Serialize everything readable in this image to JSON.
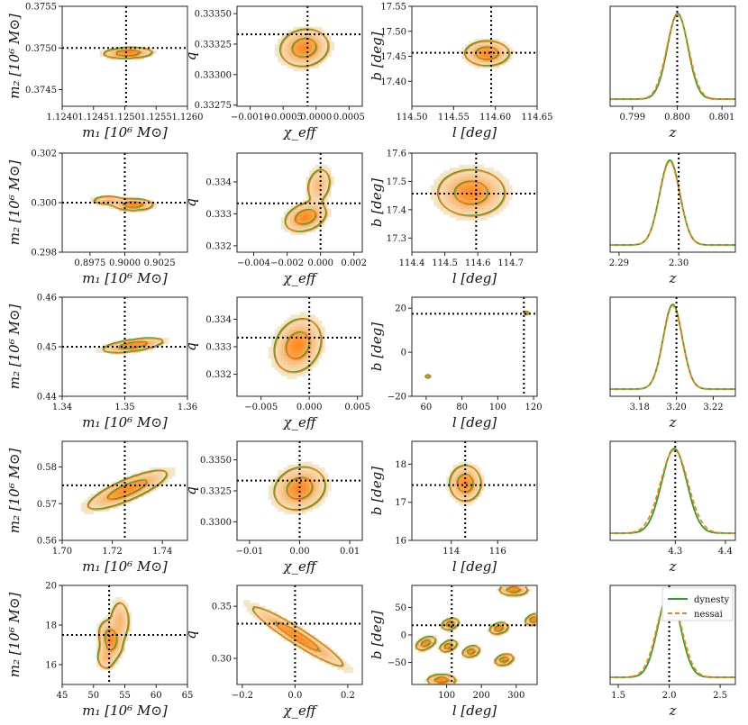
{
  "colors": {
    "dynesty": "#2ca02c",
    "nessai": "#ff7f0e",
    "injection": "#000000",
    "density_hi": "#ff8a1e",
    "density_lo": "#f3efd9"
  },
  "legend": {
    "items": [
      {
        "label": "dynesty",
        "style": "solid"
      },
      {
        "label": "nessai",
        "style": "dashed"
      }
    ],
    "location": "upper-right of last z panel"
  },
  "chart_data": [
    {
      "type": "contour",
      "row": 0,
      "col": 0,
      "xlabel": "m₁ [10⁶ M⊙]",
      "ylabel": "m₂ [10⁶ M⊙]",
      "xlim": [
        1.124,
        1.126
      ],
      "ylim": [
        0.3743,
        0.3755
      ],
      "xticks": [
        1.124,
        1.1245,
        1.125,
        1.1255,
        1.126
      ],
      "xticklabels": [
        "1.1240",
        "1.1245",
        "1.1250",
        "1.1255",
        "1.1260"
      ],
      "yticks": [
        0.3745,
        0.375,
        0.3755
      ],
      "yticklabels": [
        "0.3745",
        "0.3750",
        "0.3755"
      ],
      "injection": [
        1.12502,
        0.375
      ],
      "blobs": [
        {
          "center": [
            1.12505,
            0.37494
          ],
          "sx": 0.00019,
          "sy": 3e-05,
          "rho": 0.15
        }
      ]
    },
    {
      "type": "contour",
      "row": 0,
      "col": 1,
      "xlabel": "χ_eff",
      "ylabel": "q",
      "xlim": [
        -0.0012,
        0.0007
      ],
      "ylim": [
        0.33274,
        0.33356
      ],
      "xticks": [
        -0.001,
        -0.0005,
        0.0,
        0.0005
      ],
      "xticklabels": [
        "−0.0010",
        "−0.0005",
        "0.0000",
        "0.0005"
      ],
      "yticks": [
        0.33275,
        0.333,
        0.33325,
        0.3335
      ],
      "yticklabels": [
        "0.33275",
        "0.33300",
        "0.33325",
        "0.33350"
      ],
      "injection": [
        -0.00013,
        0.33333
      ],
      "blobs": [
        {
          "center": [
            -0.00018,
            0.33322
          ],
          "sx": 0.00018,
          "sy": 7.5e-05,
          "rho": 0.1
        }
      ]
    },
    {
      "type": "contour",
      "row": 0,
      "col": 2,
      "xlabel": "l [deg]",
      "ylabel": "b [deg]",
      "xlim": [
        114.5,
        114.65
      ],
      "ylim": [
        17.35,
        17.55
      ],
      "xticks": [
        114.5,
        114.55,
        114.6,
        114.65
      ],
      "xticklabels": [
        "114.50",
        "114.55",
        "114.60",
        "114.65"
      ],
      "yticks": [
        17.4,
        17.45,
        17.5,
        17.55
      ],
      "yticklabels": [
        "17.40",
        "17.45",
        "17.50",
        "17.55"
      ],
      "injection": [
        114.595,
        17.457
      ],
      "blobs": [
        {
          "center": [
            114.59,
            17.456
          ],
          "sx": 0.013,
          "sy": 0.012,
          "rho": 0.0
        }
      ]
    },
    {
      "type": "line",
      "row": 0,
      "col": 3,
      "xlabel": "z",
      "xlim": [
        0.7985,
        0.8013
      ],
      "xticks": [
        0.799,
        0.8,
        0.801
      ],
      "xticklabels": [
        "0.799",
        "0.800",
        "0.801"
      ],
      "injection": 0.8,
      "peak": 0.80001,
      "sigma": 0.00023,
      "nessai_sigma_scale": 1.06
    },
    {
      "type": "contour",
      "row": 1,
      "col": 0,
      "xlabel": "m₁ [10⁶ M⊙]",
      "ylabel": "m₂ [10⁶ M⊙]",
      "xlim": [
        0.8955,
        0.9045
      ],
      "ylim": [
        0.298,
        0.302
      ],
      "xticks": [
        0.8975,
        0.9,
        0.9025
      ],
      "xticklabels": [
        "0.8975",
        "0.9000",
        "0.9025"
      ],
      "yticks": [
        0.298,
        0.3,
        0.302
      ],
      "yticklabels": [
        "0.298",
        "0.300",
        "0.302"
      ],
      "injection": [
        0.9,
        0.3
      ],
      "blobs": [
        {
          "center": [
            0.9006,
            0.29992
          ],
          "sx": 0.0007,
          "sy": 0.00011,
          "rho": 0.0
        },
        {
          "center": [
            0.8988,
            0.30009
          ],
          "sx": 0.0006,
          "sy": 8e-05,
          "rho": 0.0,
          "w": 0.6
        }
      ]
    },
    {
      "type": "contour",
      "row": 1,
      "col": 1,
      "xlabel": "χ_eff",
      "ylabel": "q",
      "xlim": [
        -0.005,
        0.0025
      ],
      "ylim": [
        0.3318,
        0.3349
      ],
      "xticks": [
        -0.004,
        -0.002,
        0.0,
        0.002
      ],
      "xticklabels": [
        "−0.004",
        "−0.002",
        "0.000",
        "0.002"
      ],
      "yticks": [
        0.332,
        0.333,
        0.334
      ],
      "yticklabels": [
        "0.332",
        "0.333",
        "0.334"
      ],
      "injection": [
        0.0,
        0.33333
      ],
      "blobs": [
        {
          "center": [
            -0.0009,
            0.3329
          ],
          "sx": 0.0006,
          "sy": 0.00022,
          "rho": 0.3
        },
        {
          "center": [
            -0.0001,
            0.3339
          ],
          "sx": 0.0004,
          "sy": 0.0003,
          "rho": 0.2,
          "w": 0.45
        }
      ]
    },
    {
      "type": "contour",
      "row": 1,
      "col": 2,
      "xlabel": "l [deg]",
      "ylabel": "b [deg]",
      "xlim": [
        114.4,
        114.78
      ],
      "ylim": [
        17.25,
        17.6
      ],
      "xticks": [
        114.4,
        114.5,
        114.6,
        114.7
      ],
      "xticklabels": [
        "114.4",
        "114.5",
        "114.6",
        "114.7"
      ],
      "yticks": [
        17.3,
        17.4,
        17.5,
        17.6
      ],
      "yticklabels": [
        "17.3",
        "17.4",
        "17.5",
        "17.6"
      ],
      "injection": [
        114.595,
        17.457
      ],
      "blobs": [
        {
          "center": [
            114.58,
            17.46
          ],
          "sx": 0.05,
          "sy": 0.04,
          "rho": 0.0
        }
      ]
    },
    {
      "type": "line",
      "row": 1,
      "col": 3,
      "xlabel": "z",
      "xlim": [
        2.2885,
        2.3095
      ],
      "xticks": [
        2.29,
        2.3
      ],
      "xticklabels": [
        "2.29",
        "2.30"
      ],
      "injection": 2.3,
      "peak": 2.2985,
      "sigma": 0.0017,
      "nessai_sigma_scale": 1.0
    },
    {
      "type": "contour",
      "row": 2,
      "col": 0,
      "xlabel": "m₁ [10⁶ M⊙]",
      "ylabel": "m₂ [10⁶ M⊙]",
      "xlim": [
        1.34,
        1.36
      ],
      "ylim": [
        0.44,
        0.46
      ],
      "xticks": [
        1.34,
        1.35,
        1.36
      ],
      "xticklabels": [
        "1.34",
        "1.35",
        "1.36"
      ],
      "yticks": [
        0.44,
        0.45,
        0.46
      ],
      "yticklabels": [
        "0.44",
        "0.45",
        "0.46"
      ],
      "injection": [
        1.35,
        0.45
      ],
      "blobs": [
        {
          "center": [
            1.3513,
            0.4503
          ],
          "sx": 0.0024,
          "sy": 0.0007,
          "rho": 0.6
        }
      ]
    },
    {
      "type": "contour",
      "row": 2,
      "col": 1,
      "xlabel": "χ_eff",
      "ylabel": "q",
      "xlim": [
        -0.0075,
        0.0055
      ],
      "ylim": [
        0.3312,
        0.3348
      ],
      "xticks": [
        -0.005,
        0.0,
        0.005
      ],
      "xticklabels": [
        "−0.005",
        "0.000",
        "0.005"
      ],
      "yticks": [
        0.332,
        0.333,
        0.334
      ],
      "yticklabels": [
        "0.332",
        "0.333",
        "0.334"
      ],
      "injection": [
        0.0,
        0.33333
      ],
      "blobs": [
        {
          "center": [
            -0.0012,
            0.33305
          ],
          "sx": 0.0012,
          "sy": 0.00048,
          "rho": 0.2
        }
      ]
    },
    {
      "type": "scatter",
      "row": 2,
      "col": 2,
      "xlabel": "l [deg]",
      "ylabel": "b [deg]",
      "xlim": [
        52,
        122
      ],
      "ylim": [
        -20,
        25
      ],
      "xticks": [
        60,
        80,
        100,
        120
      ],
      "xticklabels": [
        "60",
        "80",
        "100",
        "120"
      ],
      "yticks": [
        -20,
        0,
        20
      ],
      "yticklabels": [
        "−20",
        "0",
        "20"
      ],
      "injection": [
        114.6,
        17.5
      ],
      "points": [
        [
          116.0,
          17.8
        ],
        [
          61.0,
          -11.0
        ]
      ]
    },
    {
      "type": "line",
      "row": 2,
      "col": 3,
      "xlabel": "z",
      "xlim": [
        3.164,
        3.232
      ],
      "xticks": [
        3.18,
        3.2,
        3.22
      ],
      "xticklabels": [
        "3.18",
        "3.20",
        "3.22"
      ],
      "injection": 3.2,
      "peak": 3.198,
      "sigma": 0.0052,
      "nessai_sigma_scale": 1.0
    },
    {
      "type": "contour",
      "row": 3,
      "col": 0,
      "xlabel": "m₁ [10⁶ M⊙]",
      "ylabel": "m₂ [10⁶ M⊙]",
      "xlim": [
        1.7,
        1.75
      ],
      "ylim": [
        0.56,
        0.587
      ],
      "xticks": [
        1.7,
        1.72,
        1.74
      ],
      "xticklabels": [
        "1.70",
        "1.72",
        "1.74"
      ],
      "yticks": [
        0.56,
        0.57,
        0.58
      ],
      "yticklabels": [
        "0.56",
        "0.57",
        "0.58"
      ],
      "injection": [
        1.725,
        0.575
      ],
      "blobs": [
        {
          "center": [
            1.726,
            0.5738
          ],
          "sx": 0.0078,
          "sy": 0.0026,
          "rho": 0.82
        }
      ]
    },
    {
      "type": "contour",
      "row": 3,
      "col": 1,
      "xlabel": "χ_eff",
      "ylabel": "q",
      "xlim": [
        -0.0125,
        0.0125
      ],
      "ylim": [
        0.3285,
        0.3365
      ],
      "xticks": [
        -0.01,
        0.0,
        0.01
      ],
      "xticklabels": [
        "−0.01",
        "0.00",
        "0.01"
      ],
      "yticks": [
        0.33,
        0.3325,
        0.335
      ],
      "yticklabels": [
        "0.3300",
        "0.3325",
        "0.3350"
      ],
      "injection": [
        0.0,
        0.33333
      ],
      "blobs": [
        {
          "center": [
            0.0,
            0.3327
          ],
          "sx": 0.0025,
          "sy": 0.00085,
          "rho": 0.15
        }
      ]
    },
    {
      "type": "contour",
      "row": 3,
      "col": 2,
      "xlabel": "l [deg]",
      "ylabel": "b [deg]",
      "xlim": [
        112.3,
        117.7
      ],
      "ylim": [
        16.0,
        18.6
      ],
      "xticks": [
        114,
        116
      ],
      "xticklabels": [
        "114",
        "116"
      ],
      "yticks": [
        16,
        17,
        18
      ],
      "yticklabels": [
        "16",
        "17",
        "18"
      ],
      "injection": [
        114.6,
        17.45
      ],
      "blobs": [
        {
          "center": [
            114.6,
            17.5
          ],
          "sx": 0.33,
          "sy": 0.23,
          "rho": 0.0
        }
      ]
    },
    {
      "type": "line",
      "row": 3,
      "col": 3,
      "xlabel": "z",
      "xlim": [
        4.17,
        4.42
      ],
      "xticks": [
        4.3,
        4.4
      ],
      "xticklabels": [
        "4.3",
        "4.4"
      ],
      "injection": 4.3,
      "peak": 4.298,
      "sigma": 0.025,
      "nessai_sigma_scale": 1.1
    },
    {
      "type": "contour",
      "row": 4,
      "col": 0,
      "xlabel": "m₁ [10⁶ M⊙]",
      "ylabel": "m₂ [10⁶ M⊙]",
      "xlim": [
        45,
        65
      ],
      "ylim": [
        15,
        20
      ],
      "xticks": [
        45,
        50,
        55,
        60,
        65
      ],
      "xticklabels": [
        "45",
        "50",
        "55",
        "60",
        "65"
      ],
      "yticks": [
        16,
        18,
        20
      ],
      "yticklabels": [
        "16",
        "18",
        "20"
      ],
      "injection": [
        52.5,
        17.5
      ],
      "blobs": [
        {
          "center": [
            52.7,
            17.3
          ],
          "sx": 0.9,
          "sy": 0.45,
          "rho": -0.3
        },
        {
          "center": [
            54.2,
            18.2
          ],
          "sx": 0.8,
          "sy": 0.55,
          "rho": 0.0,
          "w": 0.55
        },
        {
          "center": [
            52.0,
            16.4
          ],
          "sx": 0.8,
          "sy": 0.35,
          "rho": 0.0,
          "w": 0.5
        }
      ]
    },
    {
      "type": "contour",
      "row": 4,
      "col": 1,
      "xlabel": "χ_eff",
      "ylabel": "q",
      "xlim": [
        -0.22,
        0.255
      ],
      "ylim": [
        0.275,
        0.37
      ],
      "xticks": [
        -0.2,
        0.0,
        0.2
      ],
      "xticklabels": [
        "−0.2",
        "0.0",
        "0.2"
      ],
      "yticks": [
        0.3,
        0.35
      ],
      "yticklabels": [
        "0.30",
        "0.35"
      ],
      "injection": [
        0.0,
        0.3333
      ],
      "blobs": [
        {
          "center": [
            0.01,
            0.321
          ],
          "sx": 0.085,
          "sy": 0.014,
          "rho": -0.95
        }
      ]
    },
    {
      "type": "contour",
      "row": 4,
      "col": 2,
      "xlabel": "l [deg]",
      "ylabel": "b [deg]",
      "xlim": [
        0,
        360
      ],
      "ylim": [
        -90,
        90
      ],
      "xticks": [
        100,
        200,
        300
      ],
      "xticklabels": [
        "100",
        "200",
        "300"
      ],
      "yticks": [
        -50,
        0,
        50
      ],
      "yticklabels": [
        "−50",
        "0",
        "50"
      ],
      "injection": [
        114.6,
        17.5
      ],
      "blobs": [
        {
          "center": [
            110,
            20
          ],
          "sx": 12,
          "sy": 5,
          "rho": 0.3
        },
        {
          "center": [
            40,
            -15
          ],
          "sx": 14,
          "sy": 6,
          "rho": 0.5
        },
        {
          "center": [
            105,
            -20
          ],
          "sx": 12,
          "sy": 5,
          "rho": 0.4
        },
        {
          "center": [
            170,
            -30
          ],
          "sx": 12,
          "sy": 5,
          "rho": 0.3
        },
        {
          "center": [
            250,
            12
          ],
          "sx": 13,
          "sy": 5,
          "rho": 0.3
        },
        {
          "center": [
            265,
            -45
          ],
          "sx": 13,
          "sy": 5,
          "rho": 0.3
        },
        {
          "center": [
            350,
            28
          ],
          "sx": 12,
          "sy": 5,
          "rho": 0.3
        },
        {
          "center": [
            85,
            -82
          ],
          "sx": 20,
          "sy": 5,
          "rho": 0.0
        },
        {
          "center": [
            292,
            82
          ],
          "sx": 20,
          "sy": 5,
          "rho": 0.0
        }
      ]
    },
    {
      "type": "line",
      "row": 4,
      "col": 3,
      "xlabel": "z",
      "xlim": [
        1.42,
        2.65
      ],
      "xticks": [
        1.5,
        2.0,
        2.5
      ],
      "xticklabels": [
        "1.5",
        "2.0",
        "2.5"
      ],
      "injection": 2.0,
      "peak": 2.0,
      "sigma": 0.11,
      "nessai_sigma_scale": 1.08
    }
  ]
}
